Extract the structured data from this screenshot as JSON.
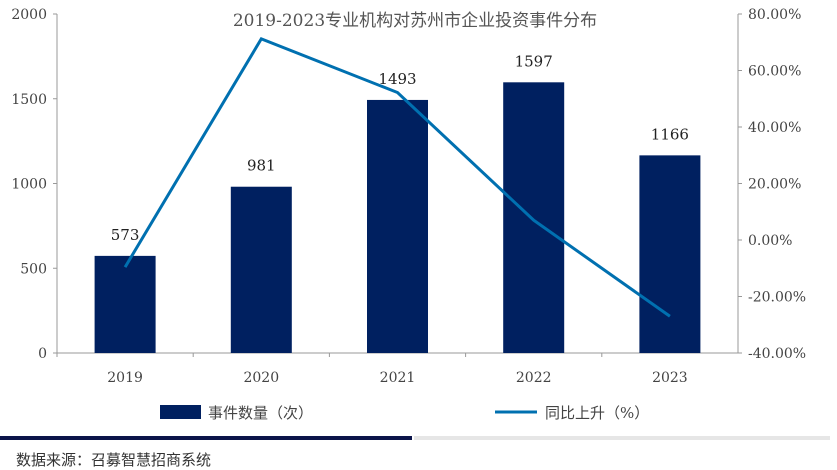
{
  "chart_data": {
    "type": "bar+line",
    "title": "2019-2023专业机构对苏州市企业投资事件分布",
    "categories": [
      "2019",
      "2020",
      "2021",
      "2022",
      "2023"
    ],
    "series": [
      {
        "name": "事件数量（次）",
        "type": "bar",
        "axis": "left",
        "values": [
          573,
          981,
          1493,
          1597,
          1166
        ],
        "color": "#002060"
      },
      {
        "name": "同比上升（%）",
        "type": "line",
        "axis": "right",
        "values": [
          -9.6,
          71.2,
          52.2,
          7.0,
          -27.0
        ],
        "color": "#0070b0"
      }
    ],
    "data_labels": [
      "573",
      "981",
      "1493",
      "1597",
      "1166"
    ],
    "left_axis": {
      "ylim": [
        0,
        2000
      ],
      "ticks": [
        "0",
        "500",
        "1000",
        "1500",
        "2000"
      ]
    },
    "right_axis": {
      "ylim": [
        -40,
        80
      ],
      "ticks": [
        "-40.00%",
        "-20.00%",
        "0.00%",
        "20.00%",
        "40.00%",
        "60.00%",
        "80.00%"
      ]
    },
    "grid": false,
    "legend_position": "bottom"
  },
  "source": "数据来源：召募智慧招商系统"
}
